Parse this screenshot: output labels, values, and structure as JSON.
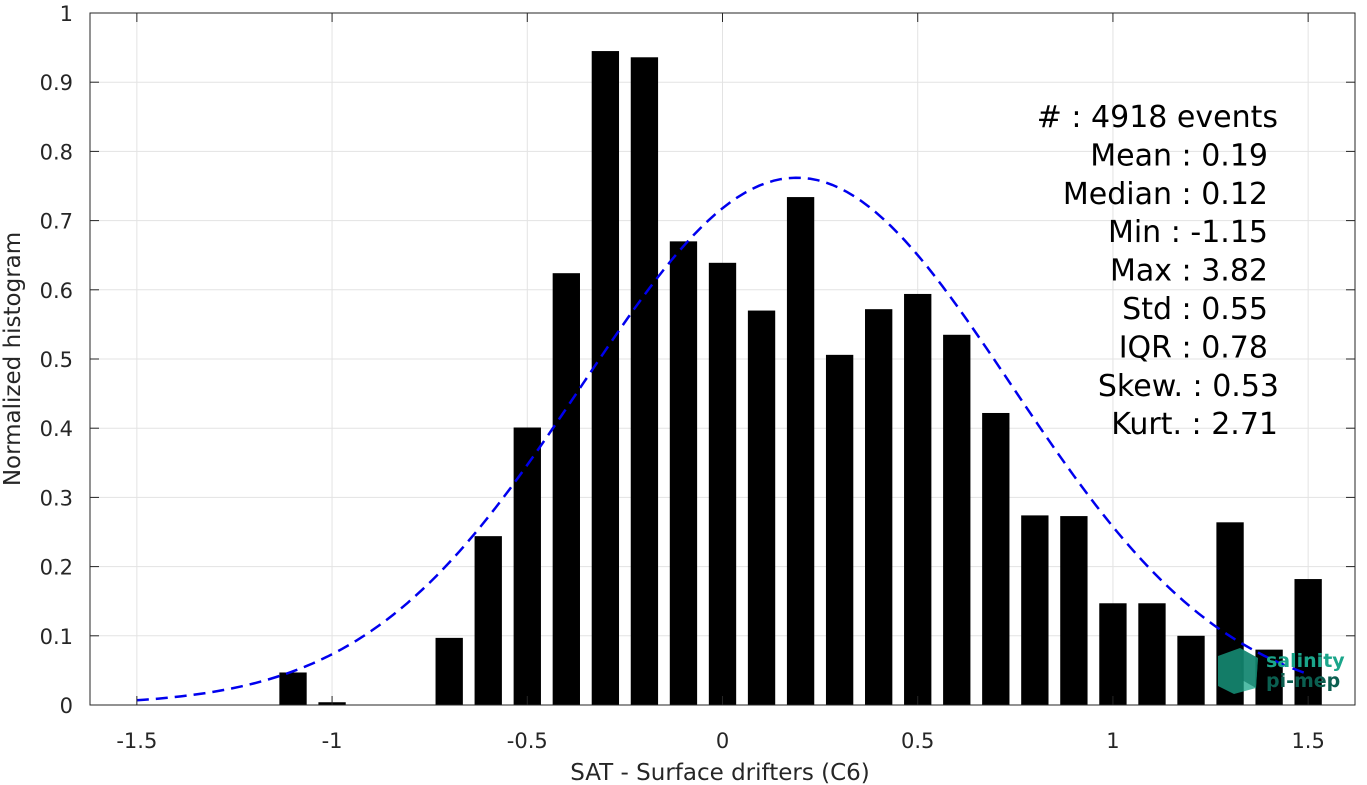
{
  "chart_data": {
    "type": "bar",
    "title": "",
    "xlabel": "SAT - Surface drifters (C6)",
    "ylabel": "Normalized histogram",
    "xlim": [
      -1.62,
      1.62
    ],
    "ylim": [
      0,
      1
    ],
    "grid": true,
    "x_ticks": [
      -1.5,
      -1,
      -0.5,
      0,
      0.5,
      1,
      1.5
    ],
    "x_tick_labels": [
      "-1.5",
      "-1",
      "-0.5",
      "0",
      "0.5",
      "1",
      "1.5"
    ],
    "y_ticks": [
      0,
      0.1,
      0.2,
      0.3,
      0.4,
      0.5,
      0.6,
      0.7,
      0.8,
      0.9,
      1
    ],
    "y_tick_labels": [
      "0",
      "0.1",
      "0.2",
      "0.3",
      "0.4",
      "0.5",
      "0.6",
      "0.7",
      "0.8",
      "0.9",
      "1"
    ],
    "bar_width": 0.07,
    "bar_color": "#000000",
    "x": [
      -1.1,
      -1.0,
      -0.7,
      -0.6,
      -0.5,
      -0.4,
      -0.3,
      -0.2,
      -0.1,
      0.0,
      0.1,
      0.2,
      0.3,
      0.4,
      0.5,
      0.6,
      0.7,
      0.8,
      0.9,
      1.0,
      1.1,
      1.2,
      1.3,
      1.4,
      1.5
    ],
    "values": [
      0.047,
      0.004,
      0.097,
      0.244,
      0.401,
      0.624,
      0.945,
      0.936,
      0.67,
      0.639,
      0.57,
      0.734,
      0.506,
      0.572,
      0.594,
      0.535,
      0.422,
      0.274,
      0.273,
      0.147,
      0.147,
      0.1,
      0.264,
      0.08,
      0.182
    ],
    "fit": {
      "type": "gaussian",
      "mean": 0.19,
      "std": 0.55,
      "peak": 0.762,
      "color": "#0000ee",
      "style": "dashed",
      "x_range": [
        -1.5,
        1.5
      ]
    },
    "annotations": [
      "#  : 4918 events",
      "Mean : 0.19",
      "Median : 0.12",
      "Min : -1.15",
      "Max : 3.82",
      "Std : 0.55",
      "IQR : 0.78",
      "Skew. : 0.53",
      "Kurt. : 2.71"
    ]
  },
  "logo": {
    "line1": "salinity",
    "line2": "pi-mep",
    "color": "#1aa58a"
  }
}
